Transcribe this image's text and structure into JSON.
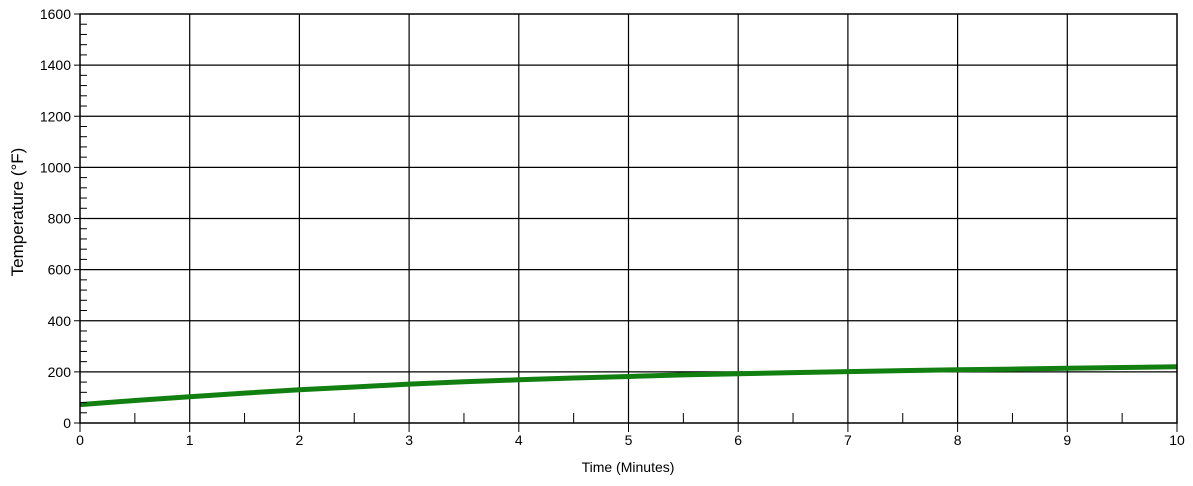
{
  "chart_data": {
    "type": "line",
    "title": "",
    "xlabel": "Time (Minutes)",
    "ylabel": "Temperature (°F)",
    "xlim": [
      0,
      10
    ],
    "ylim": [
      0,
      1600
    ],
    "x_ticks": [
      0,
      1,
      2,
      3,
      4,
      5,
      6,
      7,
      8,
      9,
      10
    ],
    "x_tick_labels": [
      "0",
      "1",
      "2",
      "3",
      "4",
      "5",
      "6",
      "7",
      "8",
      "9",
      "10"
    ],
    "y_ticks": [
      0,
      200,
      400,
      600,
      800,
      1000,
      1200,
      1400,
      1600
    ],
    "y_tick_labels": [
      "0",
      "200",
      "400",
      "600",
      "800",
      "1000",
      "1200",
      "1400",
      "1600"
    ],
    "grid": true,
    "legend": "none",
    "series": [
      {
        "color": "#118011",
        "x": [
          0,
          0.5,
          1,
          1.5,
          2,
          2.5,
          3,
          3.5,
          4,
          4.5,
          5,
          5.5,
          6,
          6.5,
          7,
          7.5,
          8,
          8.5,
          9,
          9.5,
          10
        ],
        "y": [
          72,
          88,
          103,
          117,
          130,
          141,
          152,
          161,
          169,
          176,
          182,
          188,
          193,
          197,
          201,
          205,
          208,
          211,
          214,
          217,
          220
        ]
      }
    ]
  }
}
